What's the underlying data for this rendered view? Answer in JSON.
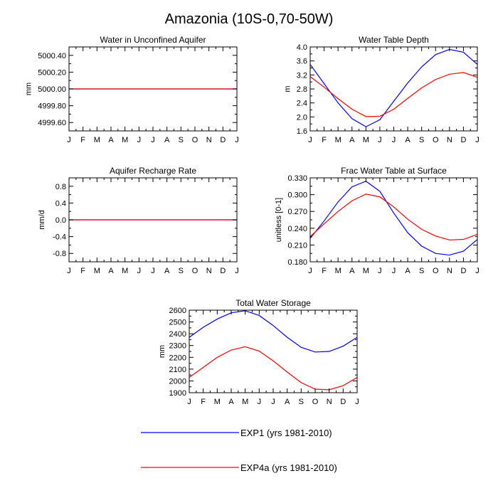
{
  "figure": {
    "title": "Amazonia (10S-0,70-50W)",
    "background": "#ffffff"
  },
  "months": [
    "J",
    "F",
    "M",
    "A",
    "M",
    "J",
    "J",
    "A",
    "S",
    "O",
    "N",
    "D",
    "J"
  ],
  "series_styles": [
    {
      "name": "EXP1 (yrs 1981-2010)",
      "color": "#0000ff"
    },
    {
      "name": "EXP4a (yrs 1981-2010)",
      "color": "#ff0000"
    }
  ],
  "legend": {
    "items": [
      {
        "label": "EXP1 (yrs 1981-2010)",
        "color": "#0000ff"
      },
      {
        "label": "EXP4a (yrs 1981-2010)",
        "color": "#ff0000"
      }
    ]
  },
  "chart_data": [
    {
      "type": "line",
      "title": "Water in Unconfined Aquifer",
      "ylabel": "mm",
      "xlabel": "",
      "ylim": [
        4999.5,
        5000.5
      ],
      "yticks": [
        4999.6,
        4999.8,
        5000.0,
        5000.2,
        5000.4
      ],
      "ytick_labels": [
        "4999.60",
        "4999.80",
        "5000.00",
        "5000.20",
        "5000.40"
      ],
      "categories": [
        "J",
        "F",
        "M",
        "A",
        "M",
        "J",
        "J",
        "A",
        "S",
        "O",
        "N",
        "D",
        "J"
      ],
      "series": [
        {
          "name": "EXP1 (yrs 1981-2010)",
          "values": [
            5000,
            5000,
            5000,
            5000,
            5000,
            5000,
            5000,
            5000,
            5000,
            5000,
            5000,
            5000,
            5000
          ]
        },
        {
          "name": "EXP4a (yrs 1981-2010)",
          "values": [
            5000,
            5000,
            5000,
            5000,
            5000,
            5000,
            5000,
            5000,
            5000,
            5000,
            5000,
            5000,
            5000
          ]
        }
      ]
    },
    {
      "type": "line",
      "title": "Water Table Depth",
      "ylabel": "m",
      "xlabel": "",
      "ylim": [
        1.6,
        4.0
      ],
      "yticks": [
        1.6,
        2.0,
        2.4,
        2.8,
        3.2,
        3.6,
        4.0
      ],
      "ytick_labels": [
        "1.6",
        "2.0",
        "2.4",
        "2.8",
        "3.2",
        "3.6",
        "4.0"
      ],
      "categories": [
        "J",
        "F",
        "M",
        "A",
        "M",
        "J",
        "J",
        "A",
        "S",
        "O",
        "N",
        "D",
        "J"
      ],
      "series": [
        {
          "name": "EXP1 (yrs 1981-2010)",
          "values": [
            3.5,
            2.95,
            2.4,
            1.95,
            1.72,
            1.92,
            2.45,
            2.97,
            3.43,
            3.78,
            3.93,
            3.85,
            3.5
          ]
        },
        {
          "name": "EXP4a (yrs 1981-2010)",
          "values": [
            3.15,
            2.85,
            2.52,
            2.22,
            2.01,
            2.02,
            2.22,
            2.53,
            2.83,
            3.07,
            3.22,
            3.27,
            3.13
          ]
        }
      ]
    },
    {
      "type": "line",
      "title": "Aquifer Recharge Rate",
      "ylabel": "mm/d",
      "xlabel": "",
      "ylim": [
        -1.0,
        1.0
      ],
      "yticks": [
        -0.8,
        -0.4,
        0.0,
        0.4,
        0.8
      ],
      "ytick_labels": [
        "-0.8",
        "-0.4",
        "0.0",
        "0.4",
        "0.8"
      ],
      "categories": [
        "J",
        "F",
        "M",
        "A",
        "M",
        "J",
        "J",
        "A",
        "S",
        "O",
        "N",
        "D",
        "J"
      ],
      "series": [
        {
          "name": "EXP1 (yrs 1981-2010)",
          "values": [
            0,
            0,
            0,
            0,
            0,
            0,
            0,
            0,
            0,
            0,
            0,
            0,
            0
          ]
        },
        {
          "name": "EXP4a (yrs 1981-2010)",
          "values": [
            0,
            0,
            0,
            0,
            0,
            0,
            0,
            0,
            0,
            0,
            0,
            0,
            0
          ]
        }
      ]
    },
    {
      "type": "line",
      "title": "Frac Water Table at Surface",
      "ylabel": "unitless [0-1]",
      "xlabel": "",
      "ylim": [
        0.18,
        0.33
      ],
      "yticks": [
        0.18,
        0.21,
        0.24,
        0.27,
        0.3,
        0.33
      ],
      "ytick_labels": [
        "0.180",
        "0.210",
        "0.240",
        "0.270",
        "0.300",
        "0.330"
      ],
      "categories": [
        "J",
        "F",
        "M",
        "A",
        "M",
        "J",
        "J",
        "A",
        "S",
        "O",
        "N",
        "D",
        "J"
      ],
      "series": [
        {
          "name": "EXP1 (yrs 1981-2010)",
          "values": [
            0.222,
            0.253,
            0.287,
            0.314,
            0.324,
            0.306,
            0.267,
            0.232,
            0.208,
            0.195,
            0.192,
            0.199,
            0.22
          ]
        },
        {
          "name": "EXP4a (yrs 1981-2010)",
          "values": [
            0.225,
            0.248,
            0.27,
            0.289,
            0.301,
            0.296,
            0.278,
            0.256,
            0.238,
            0.226,
            0.219,
            0.22,
            0.229
          ]
        }
      ]
    },
    {
      "type": "line",
      "title": "Total Water Storage",
      "ylabel": "mm",
      "xlabel": "",
      "ylim": [
        1900,
        2600
      ],
      "yticks": [
        1900,
        2000,
        2100,
        2200,
        2300,
        2400,
        2500,
        2600
      ],
      "ytick_labels": [
        "1900",
        "2000",
        "2100",
        "2200",
        "2300",
        "2400",
        "2500",
        "2600"
      ],
      "categories": [
        "J",
        "F",
        "M",
        "A",
        "M",
        "J",
        "J",
        "A",
        "S",
        "O",
        "N",
        "D",
        "J"
      ],
      "series": [
        {
          "name": "EXP1 (yrs 1981-2010)",
          "values": [
            2370,
            2455,
            2525,
            2578,
            2595,
            2555,
            2470,
            2370,
            2285,
            2245,
            2250,
            2295,
            2370
          ]
        },
        {
          "name": "EXP4a (yrs 1981-2010)",
          "values": [
            2030,
            2115,
            2200,
            2262,
            2290,
            2253,
            2170,
            2075,
            1985,
            1930,
            1925,
            1960,
            2030
          ]
        }
      ]
    }
  ]
}
